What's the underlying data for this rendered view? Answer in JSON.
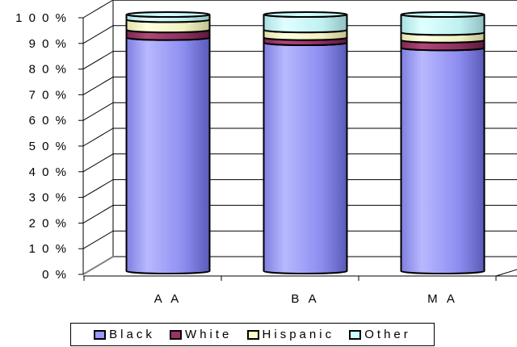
{
  "chart_data": {
    "type": "bar",
    "stacked": true,
    "percent_stacked": true,
    "categories": [
      "A A",
      "B A",
      "M A"
    ],
    "y_ticks": [
      "0 %",
      "1 0 %",
      "2 0 %",
      "3 0 %",
      "4 0 %",
      "5 0 %",
      "6 0 %",
      "7 0 %",
      "8 0 %",
      "9 0 %",
      "1 0 0 %"
    ],
    "ylim": [
      0,
      100
    ],
    "grid": true,
    "legend_position": "bottom",
    "series": [
      {
        "name": "Black",
        "color": "#9999FF",
        "values": [
          91,
          89,
          87
        ]
      },
      {
        "name": "White",
        "color": "#993366",
        "values": [
          3,
          2,
          3
        ]
      },
      {
        "name": "Hispanic",
        "color": "#FFFFCC",
        "values": [
          4,
          3,
          3
        ]
      },
      {
        "name": "Other",
        "color": "#CCFFFF",
        "values": [
          2,
          6,
          7
        ]
      }
    ]
  }
}
